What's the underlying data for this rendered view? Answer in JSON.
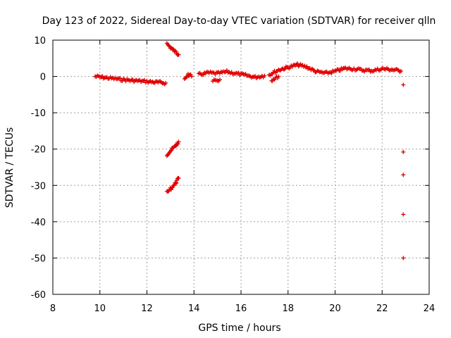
{
  "chart_data": {
    "type": "scatter",
    "title": "Day 123 of 2022, Sidereal Day-to-day VTEC variation (SDTVAR) for receiver qlln",
    "xlabel": "GPS time / hours",
    "ylabel": "SDTVAR / TECUs",
    "xlim": [
      8,
      24
    ],
    "ylim": [
      -60,
      10
    ],
    "xticks": [
      8,
      10,
      12,
      14,
      16,
      18,
      20,
      22,
      24
    ],
    "yticks": [
      -60,
      -50,
      -40,
      -30,
      -20,
      -10,
      0,
      10
    ],
    "grid": true,
    "marker": "plus",
    "color": "#e00000",
    "series": [
      {
        "name": "SDTVAR",
        "trend": [
          {
            "x": [
              9.8,
              10.2,
              10.6,
              11.0,
              11.4,
              11.8,
              12.2,
              12.8
            ],
            "y": [
              0.0,
              -0.3,
              -0.6,
              -0.9,
              -1.1,
              -1.3,
              -1.5,
              -1.8
            ]
          },
          {
            "x": [
              12.85,
              13.0,
              13.2,
              13.35
            ],
            "y": [
              9.0,
              8.0,
              6.8,
              6.0
            ]
          },
          {
            "x": [
              12.85,
              13.0,
              13.2,
              13.35
            ],
            "y": [
              -21.5,
              -20.5,
              -19.2,
              -18.0
            ]
          },
          {
            "x": [
              12.85,
              13.0,
              13.2,
              13.35
            ],
            "y": [
              -32.0,
              -31.0,
              -29.5,
              -28.0
            ]
          },
          {
            "x": [
              13.6,
              13.75,
              13.9
            ],
            "y": [
              -0.5,
              0.5,
              0.0
            ]
          },
          {
            "x": [
              14.2,
              14.6,
              15.0,
              15.4,
              15.8,
              16.2,
              16.6,
              17.0
            ],
            "y": [
              0.5,
              1.0,
              0.8,
              1.3,
              0.8,
              0.3,
              -0.2,
              0.2
            ]
          },
          {
            "x": [
              14.8,
              15.1
            ],
            "y": [
              -1.0,
              -0.9
            ]
          },
          {
            "x": [
              17.2,
              17.6,
              18.0,
              18.4,
              18.8,
              19.2,
              19.6,
              20.0,
              20.4,
              20.8,
              21.2,
              21.6,
              22.0,
              22.4,
              22.8
            ],
            "y": [
              0.5,
              1.8,
              2.5,
              3.2,
              2.6,
              1.3,
              0.9,
              1.4,
              2.2,
              2.1,
              1.7,
              1.6,
              2.1,
              1.9,
              1.5
            ]
          },
          {
            "x": [
              17.3,
              17.6
            ],
            "y": [
              -1.0,
              0.0
            ]
          }
        ],
        "isolated": [
          {
            "x": 22.9,
            "y": -2.3
          },
          {
            "x": 22.9,
            "y": -20.8
          },
          {
            "x": 22.9,
            "y": -27.1
          },
          {
            "x": 22.9,
            "y": -38.0
          },
          {
            "x": 22.9,
            "y": -50.0
          }
        ]
      }
    ]
  }
}
